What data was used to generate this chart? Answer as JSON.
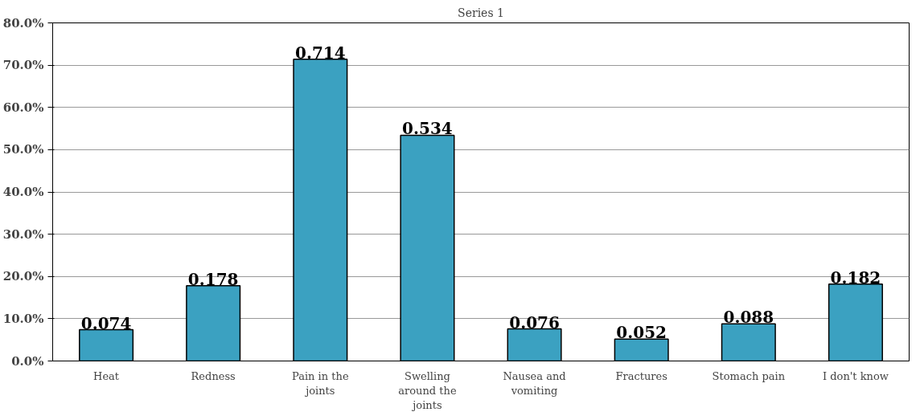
{
  "chart_data": {
    "type": "bar",
    "title": "Series 1",
    "categories": [
      "Heat",
      "Redness",
      "Pain in the joints",
      "Swelling around the joints",
      "Nausea and vomiting",
      "Fractures",
      "Stomach pain",
      "I don't know"
    ],
    "values": [
      0.074,
      0.178,
      0.714,
      0.534,
      0.076,
      0.052,
      0.088,
      0.182
    ],
    "color": "#3ba1c1",
    "data_labels": true,
    "grid": "y",
    "ylim": [
      0,
      0.8
    ],
    "yticks": [
      {
        "value": 0,
        "label": "0.0%"
      },
      {
        "value": 0.1,
        "label": "10.0%"
      },
      {
        "value": 0.2,
        "label": "20.0%"
      },
      {
        "value": 0.3,
        "label": "30.0%"
      },
      {
        "value": 0.4,
        "label": "40.0%"
      },
      {
        "value": 0.5,
        "label": "50.0%"
      },
      {
        "value": 0.6,
        "label": "60.0%"
      },
      {
        "value": 0.7,
        "label": "70.0%"
      },
      {
        "value": 0.8,
        "label": "80.0%"
      }
    ]
  }
}
